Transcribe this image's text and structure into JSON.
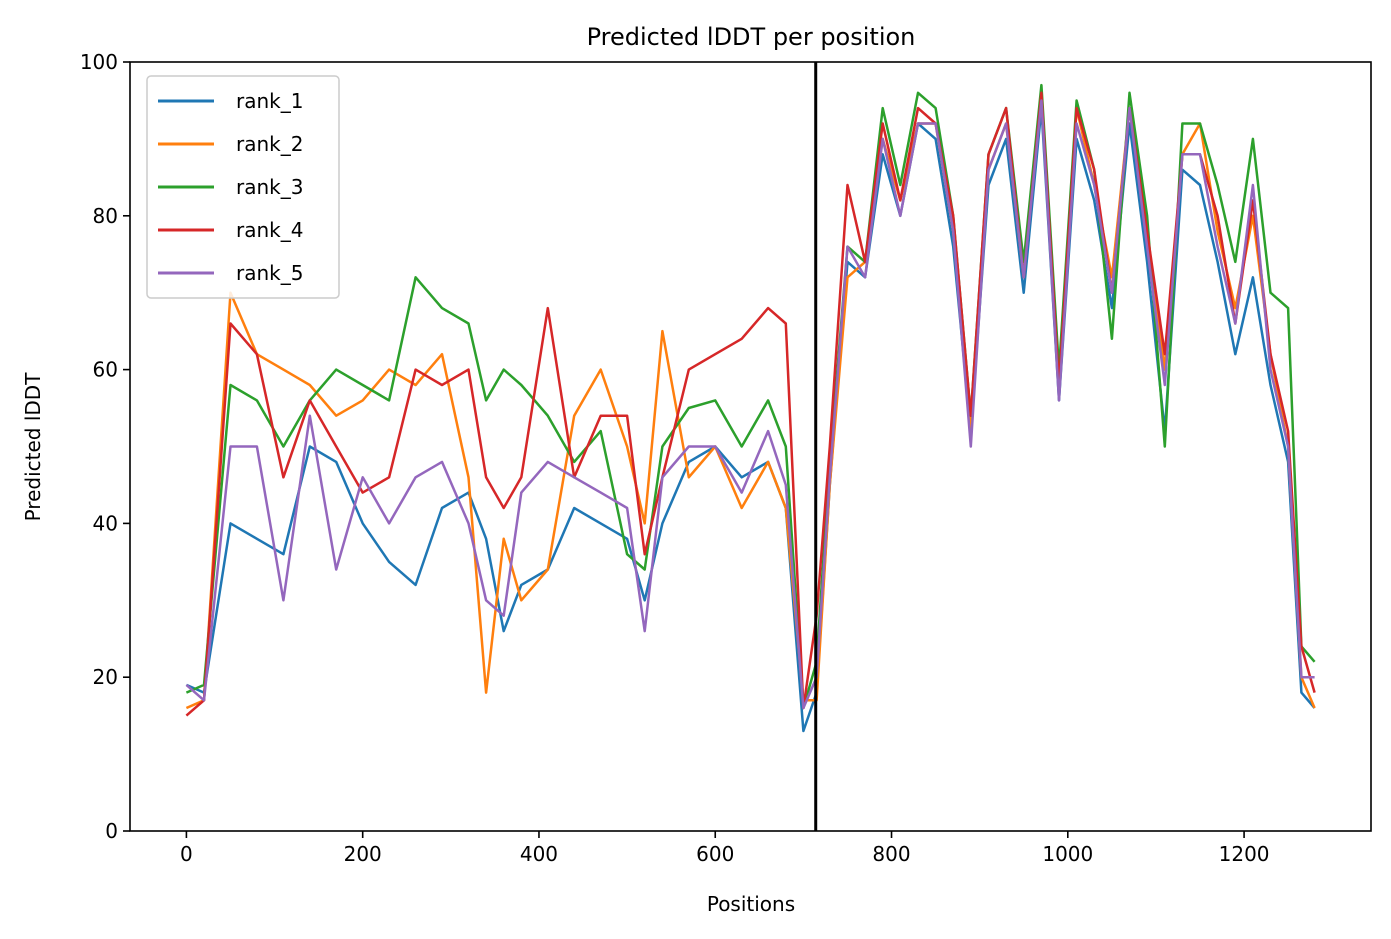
{
  "chart_data": {
    "type": "line",
    "title": "Predicted lDDT per position",
    "xlabel": "Positions",
    "ylabel": "Predicted lDDT",
    "xlim": [
      -64,
      1344
    ],
    "ylim": [
      0,
      100
    ],
    "xticks": [
      0,
      200,
      400,
      600,
      800,
      1000,
      1200
    ],
    "yticks": [
      0,
      20,
      40,
      60,
      80,
      100
    ],
    "grid": false,
    "legend_position": "top-left",
    "vertical_line_x": 714,
    "x": [
      0,
      20,
      50,
      80,
      110,
      140,
      170,
      200,
      230,
      260,
      290,
      320,
      340,
      360,
      380,
      410,
      440,
      470,
      500,
      520,
      540,
      570,
      600,
      630,
      660,
      680,
      700,
      715,
      730,
      750,
      770,
      790,
      810,
      830,
      850,
      870,
      890,
      910,
      930,
      950,
      970,
      990,
      1010,
      1030,
      1050,
      1070,
      1090,
      1110,
      1130,
      1150,
      1170,
      1190,
      1210,
      1230,
      1250,
      1265,
      1280
    ],
    "series": [
      {
        "name": "rank_1",
        "color": "#1f77b4",
        "values": [
          19,
          18,
          40,
          38,
          36,
          50,
          48,
          40,
          35,
          32,
          42,
          44,
          38,
          26,
          32,
          34,
          42,
          40,
          38,
          30,
          40,
          48,
          50,
          46,
          48,
          42,
          13,
          18,
          45,
          74,
          72,
          88,
          80,
          92,
          90,
          76,
          52,
          84,
          90,
          70,
          94,
          56,
          90,
          82,
          68,
          92,
          74,
          52,
          86,
          84,
          74,
          62,
          72,
          58,
          48,
          18,
          16
        ]
      },
      {
        "name": "rank_2",
        "color": "#ff7f0e",
        "values": [
          16,
          17,
          70,
          62,
          60,
          58,
          54,
          56,
          60,
          58,
          62,
          46,
          18,
          38,
          30,
          34,
          54,
          60,
          50,
          40,
          65,
          46,
          50,
          42,
          48,
          42,
          17,
          17,
          45,
          72,
          74,
          90,
          82,
          92,
          92,
          78,
          52,
          86,
          92,
          72,
          96,
          58,
          94,
          84,
          72,
          94,
          78,
          60,
          88,
          92,
          78,
          68,
          80,
          62,
          50,
          20,
          16
        ]
      },
      {
        "name": "rank_3",
        "color": "#2ca02c",
        "values": [
          18,
          19,
          58,
          56,
          50,
          56,
          60,
          58,
          56,
          72,
          68,
          66,
          56,
          60,
          58,
          54,
          48,
          52,
          36,
          34,
          50,
          55,
          56,
          50,
          56,
          50,
          16,
          22,
          48,
          76,
          74,
          94,
          84,
          96,
          94,
          80,
          54,
          88,
          94,
          74,
          97,
          60,
          95,
          86,
          64,
          96,
          80,
          50,
          92,
          92,
          84,
          74,
          90,
          70,
          68,
          24,
          22
        ]
      },
      {
        "name": "rank_4",
        "color": "#d62728",
        "values": [
          15,
          17,
          66,
          62,
          46,
          56,
          50,
          44,
          46,
          60,
          58,
          60,
          46,
          42,
          46,
          68,
          46,
          54,
          54,
          36,
          46,
          60,
          62,
          64,
          68,
          66,
          16,
          28,
          50,
          84,
          74,
          92,
          82,
          94,
          92,
          80,
          54,
          88,
          94,
          72,
          96,
          58,
          94,
          86,
          70,
          94,
          78,
          62,
          88,
          88,
          80,
          66,
          82,
          62,
          52,
          24,
          18
        ]
      },
      {
        "name": "rank_5",
        "color": "#9467bd",
        "values": [
          19,
          17,
          50,
          50,
          30,
          54,
          34,
          46,
          40,
          46,
          48,
          40,
          30,
          28,
          44,
          48,
          46,
          44,
          42,
          26,
          46,
          50,
          50,
          44,
          52,
          45,
          16,
          20,
          46,
          76,
          72,
          90,
          80,
          92,
          92,
          78,
          50,
          86,
          92,
          72,
          95,
          56,
          92,
          84,
          70,
          94,
          76,
          58,
          88,
          88,
          76,
          66,
          84,
          60,
          50,
          20,
          20
        ]
      }
    ]
  }
}
